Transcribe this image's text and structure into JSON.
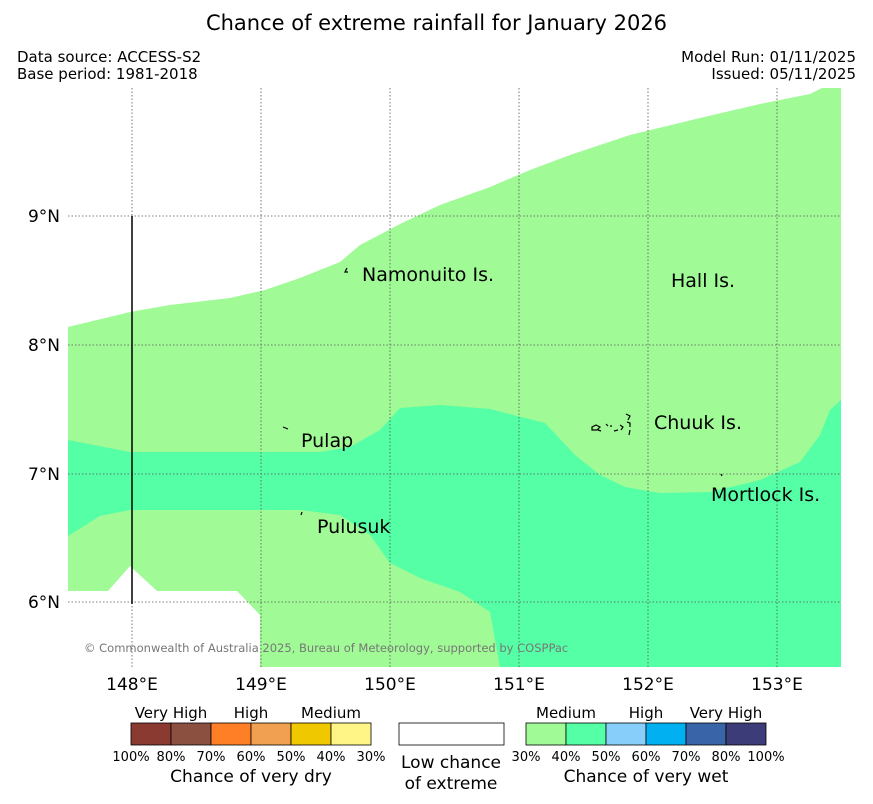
{
  "title": "Chance of extreme rainfall for January 2026",
  "meta": {
    "data_source": "Data source: ACCESS-S2",
    "base_period": "Base period: 1981-2018",
    "model_run": "Model Run: 01/11/2025",
    "issued": "Issued: 05/11/2025"
  },
  "map": {
    "lon_ticks": [
      "148°E",
      "149°E",
      "150°E",
      "151°E",
      "152°E",
      "153°E"
    ],
    "lat_ticks": [
      "9°N",
      "8°N",
      "7°N",
      "6°N"
    ],
    "places": [
      "Namonuito Is.",
      "Hall Is.",
      "Pulap",
      "Chuuk Is.",
      "Mortlock Is.",
      "Pulusuk"
    ],
    "copyright": "© Commonwealth of Australia 2025, Bureau of Meteorology, supported by COSPPac",
    "colors": {
      "wet_30_40": "#a0fa96",
      "wet_40_50": "#55ffa5",
      "no_signal": "#ffffff"
    }
  },
  "legend": {
    "dry": {
      "categories": [
        "Very High",
        "High",
        "Medium"
      ],
      "ticks": [
        "100%",
        "80%",
        "70%",
        "60%",
        "50%",
        "40%",
        "30%"
      ],
      "colors": [
        "#8b3a32",
        "#8b5040",
        "#ff7f27",
        "#f0a050",
        "#f0c800",
        "#fff587"
      ],
      "caption": "Chance of very dry"
    },
    "low": {
      "line1": "Low chance",
      "line2": "of extreme"
    },
    "wet": {
      "categories": [
        "Medium",
        "High",
        "Very High"
      ],
      "ticks": [
        "30%",
        "40%",
        "50%",
        "60%",
        "70%",
        "80%",
        "100%"
      ],
      "colors": [
        "#a0fa96",
        "#55ffa5",
        "#87cefa",
        "#00b0f0",
        "#3a64a8",
        "#3c3c78"
      ],
      "caption": "Chance of very wet"
    }
  }
}
